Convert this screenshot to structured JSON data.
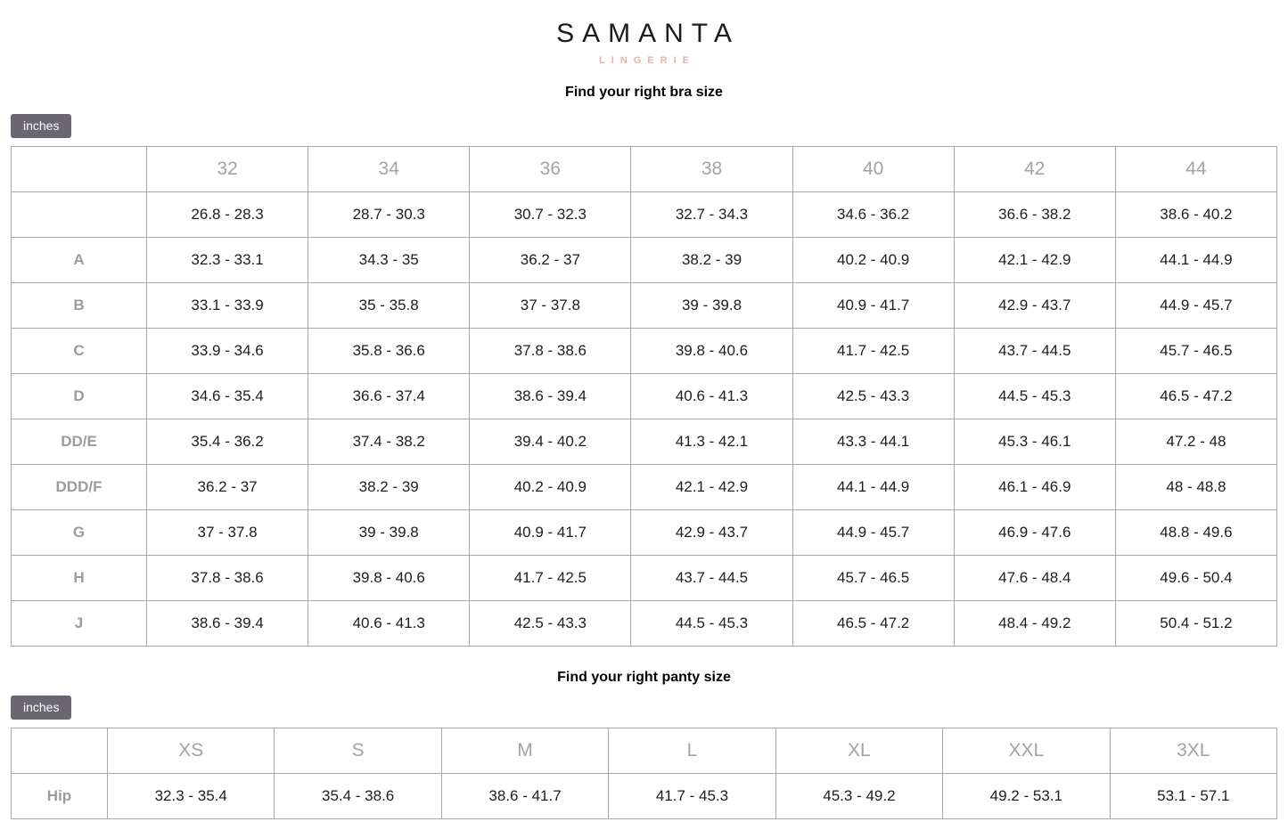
{
  "brand": {
    "name": "SAMANTA",
    "tagline": "LINGERIE"
  },
  "colors": {
    "unit_button_bg": "#6a6672",
    "unit_button_text": "#ffffff",
    "tagline_pink": "#e9b3ac",
    "table_border": "#a8a8a8",
    "header_gray": "#a3a3a3",
    "row_label_gray": "#9b9b9b",
    "cell_text": "#1d1d1d"
  },
  "bra_section": {
    "title": "Find your right bra size",
    "unit_button": "inches",
    "table": {
      "columns": [
        "",
        "32",
        "34",
        "36",
        "38",
        "40",
        "42",
        "44"
      ],
      "rows": [
        {
          "label": "",
          "values": [
            "26.8 - 28.3",
            "28.7 - 30.3",
            "30.7 - 32.3",
            "32.7 - 34.3",
            "34.6 - 36.2",
            "36.6 - 38.2",
            "38.6 - 40.2"
          ]
        },
        {
          "label": "A",
          "values": [
            "32.3 - 33.1",
            "34.3 - 35",
            "36.2 - 37",
            "38.2 - 39",
            "40.2 - 40.9",
            "42.1 - 42.9",
            "44.1 - 44.9"
          ]
        },
        {
          "label": "B",
          "values": [
            "33.1 - 33.9",
            "35 - 35.8",
            "37 - 37.8",
            "39 - 39.8",
            "40.9 - 41.7",
            "42.9 - 43.7",
            "44.9 - 45.7"
          ]
        },
        {
          "label": "C",
          "values": [
            "33.9 - 34.6",
            "35.8 - 36.6",
            "37.8 - 38.6",
            "39.8 - 40.6",
            "41.7 - 42.5",
            "43.7 - 44.5",
            "45.7 - 46.5"
          ]
        },
        {
          "label": "D",
          "values": [
            "34.6 - 35.4",
            "36.6 - 37.4",
            "38.6 - 39.4",
            "40.6 - 41.3",
            "42.5 - 43.3",
            "44.5 - 45.3",
            "46.5 - 47.2"
          ]
        },
        {
          "label": "DD/E",
          "values": [
            "35.4 - 36.2",
            "37.4 - 38.2",
            "39.4 - 40.2",
            "41.3 - 42.1",
            "43.3 - 44.1",
            "45.3 - 46.1",
            "47.2 - 48"
          ]
        },
        {
          "label": "DDD/F",
          "values": [
            "36.2 - 37",
            "38.2 - 39",
            "40.2 - 40.9",
            "42.1 - 42.9",
            "44.1 - 44.9",
            "46.1 - 46.9",
            "48 - 48.8"
          ]
        },
        {
          "label": "G",
          "values": [
            "37 - 37.8",
            "39 - 39.8",
            "40.9 - 41.7",
            "42.9 - 43.7",
            "44.9 - 45.7",
            "46.9 - 47.6",
            "48.8 - 49.6"
          ]
        },
        {
          "label": "H",
          "values": [
            "37.8 - 38.6",
            "39.8 - 40.6",
            "41.7 - 42.5",
            "43.7 - 44.5",
            "45.7 - 46.5",
            "47.6 - 48.4",
            "49.6 - 50.4"
          ]
        },
        {
          "label": "J",
          "values": [
            "38.6 - 39.4",
            "40.6 - 41.3",
            "42.5 - 43.3",
            "44.5 - 45.3",
            "46.5 - 47.2",
            "48.4 - 49.2",
            "50.4 - 51.2"
          ]
        }
      ]
    }
  },
  "panty_section": {
    "title": "Find your right panty size",
    "unit_button": "inches",
    "table": {
      "columns": [
        "",
        "XS",
        "S",
        "M",
        "L",
        "XL",
        "XXL",
        "3XL"
      ],
      "rows": [
        {
          "label": "Hip",
          "values": [
            "32.3 - 35.4",
            "35.4 - 38.6",
            "38.6 - 41.7",
            "41.7 - 45.3",
            "45.3 - 49.2",
            "49.2 - 53.1",
            "53.1 - 57.1"
          ]
        }
      ]
    }
  }
}
